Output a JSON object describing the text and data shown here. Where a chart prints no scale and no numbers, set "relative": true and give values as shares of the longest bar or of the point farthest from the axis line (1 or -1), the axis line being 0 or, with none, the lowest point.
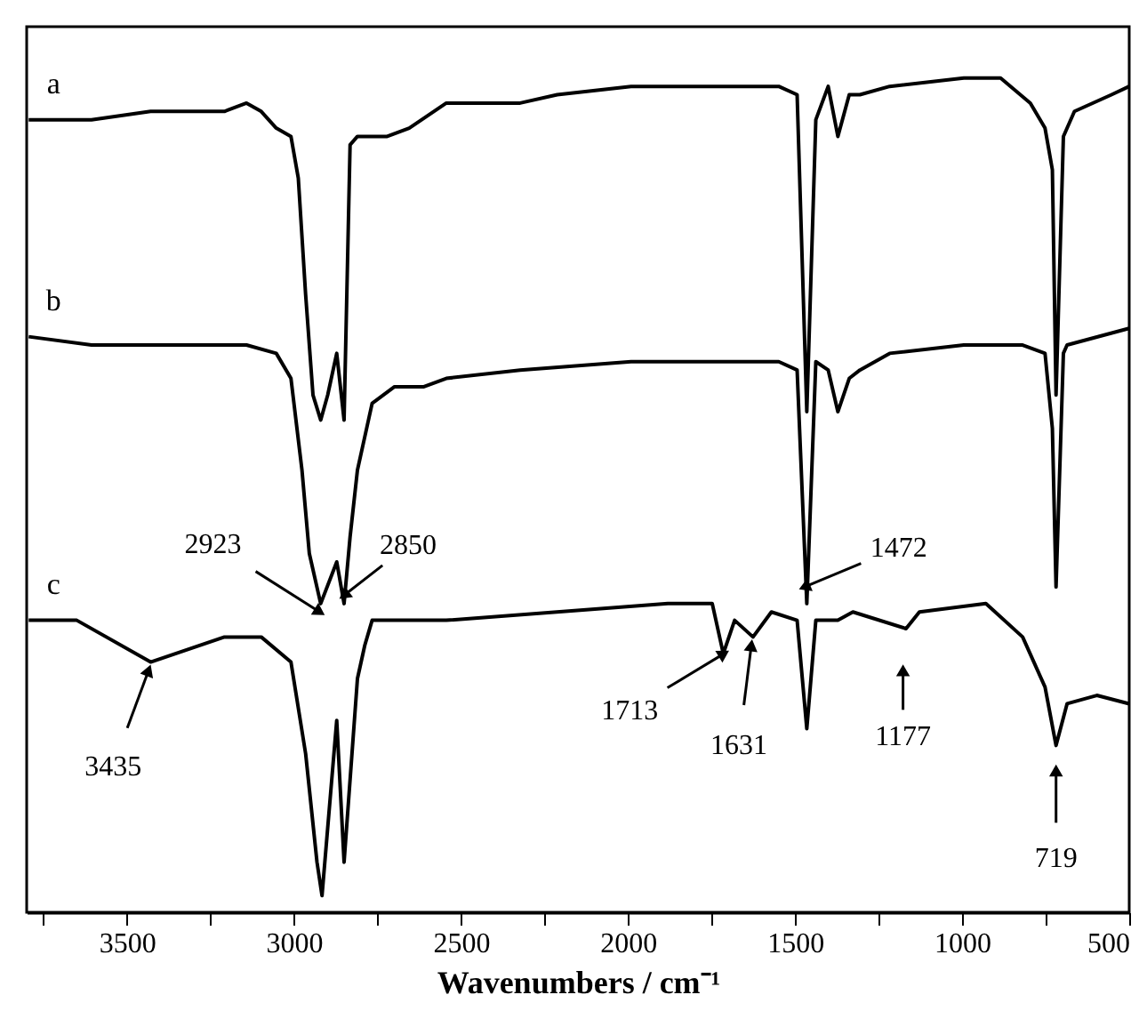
{
  "chart_data": {
    "type": "line",
    "relative": true,
    "xlabel": "Wavenumbers / cm⁻¹",
    "xlim": [
      3800,
      500
    ],
    "xticks": [
      {
        "value": 3750,
        "label": null
      },
      3500,
      {
        "value": 3250,
        "label": null
      },
      3000,
      {
        "value": 2750,
        "label": null
      },
      2500,
      {
        "value": 2250,
        "label": null
      },
      2000,
      {
        "value": 1750,
        "label": null
      },
      1500,
      {
        "value": 1250,
        "label": null
      },
      1000,
      {
        "value": 750,
        "label": null
      },
      500
    ],
    "grid": false,
    "tick_labels": "x",
    "marker": "none",
    "line_style": "solid",
    "series": [
      {
        "name": "a",
        "color": "#000000",
        "x": [
          3794,
          3650,
          3606,
          3429,
          3208,
          3142,
          3098,
          3053,
          3009,
          2987,
          2965,
          2943,
          2920,
          2899,
          2872,
          2850,
          2832,
          2810,
          2788,
          2721,
          2655,
          2544,
          2323,
          2212,
          1991,
          1748,
          1549,
          1494,
          1465,
          1438,
          1401,
          1372,
          1338,
          1306,
          1217,
          995,
          885,
          796,
          752,
          730,
          719,
          697,
          664,
          553,
          500
        ],
        "values": [
          0.95,
          0.95,
          0.95,
          0.96,
          0.96,
          0.97,
          0.96,
          0.94,
          0.93,
          0.88,
          0.74,
          0.62,
          0.59,
          0.62,
          0.67,
          0.59,
          0.92,
          0.93,
          0.93,
          0.93,
          0.94,
          0.97,
          0.97,
          0.98,
          0.99,
          0.99,
          0.99,
          0.98,
          0.6,
          0.95,
          0.99,
          0.93,
          0.98,
          0.98,
          0.99,
          1.0,
          1.0,
          0.97,
          0.94,
          0.89,
          0.62,
          0.93,
          0.96,
          0.98,
          0.99
        ]
      },
      {
        "name": "b",
        "color": "#000000",
        "x": [
          3794,
          3606,
          3142,
          3053,
          3009,
          2976,
          2954,
          2920,
          2872,
          2850,
          2832,
          2810,
          2766,
          2699,
          2611,
          2544,
          2323,
          1991,
          1549,
          1494,
          1465,
          1438,
          1401,
          1372,
          1338,
          1306,
          1217,
          995,
          819,
          752,
          730,
          719,
          697,
          686,
          500
        ],
        "values": [
          0.69,
          0.68,
          0.68,
          0.67,
          0.64,
          0.53,
          0.43,
          0.37,
          0.42,
          0.37,
          0.45,
          0.53,
          0.61,
          0.63,
          0.63,
          0.64,
          0.65,
          0.66,
          0.66,
          0.65,
          0.37,
          0.66,
          0.65,
          0.6,
          0.64,
          0.65,
          0.67,
          0.68,
          0.68,
          0.67,
          0.58,
          0.39,
          0.67,
          0.68,
          0.7
        ]
      },
      {
        "name": "c",
        "color": "#000000",
        "x": [
          3794,
          3650,
          3429,
          3208,
          3098,
          3009,
          2965,
          2931,
          2916,
          2872,
          2850,
          2810,
          2788,
          2766,
          2544,
          1881,
          1748,
          1715,
          1681,
          1626,
          1571,
          1494,
          1465,
          1438,
          1372,
          1327,
          1168,
          1128,
          929,
          819,
          752,
          719,
          686,
          597,
          500
        ],
        "values": [
          0.35,
          0.35,
          0.3,
          0.33,
          0.33,
          0.3,
          0.19,
          0.06,
          0.02,
          0.23,
          0.06,
          0.28,
          0.32,
          0.35,
          0.35,
          0.37,
          0.37,
          0.31,
          0.35,
          0.33,
          0.36,
          0.35,
          0.22,
          0.35,
          0.35,
          0.36,
          0.34,
          0.36,
          0.37,
          0.33,
          0.27,
          0.2,
          0.25,
          0.26,
          0.25
        ]
      }
    ],
    "annotations": [
      {
        "text": "2923",
        "x": 2923,
        "y": 0.36
      },
      {
        "text": "2850",
        "x": 2850,
        "y": 0.38
      },
      {
        "text": "1472",
        "x": 1472,
        "y": 0.39
      },
      {
        "text": "3435",
        "x": 3435,
        "y": 0.29
      },
      {
        "text": "1713",
        "x": 1713,
        "y": 0.31
      },
      {
        "text": "1631",
        "x": 1631,
        "y": 0.32
      },
      {
        "text": "1177",
        "x": 1177,
        "y": 0.29
      },
      {
        "text": "719",
        "x": 719,
        "y": 0.17
      }
    ]
  }
}
